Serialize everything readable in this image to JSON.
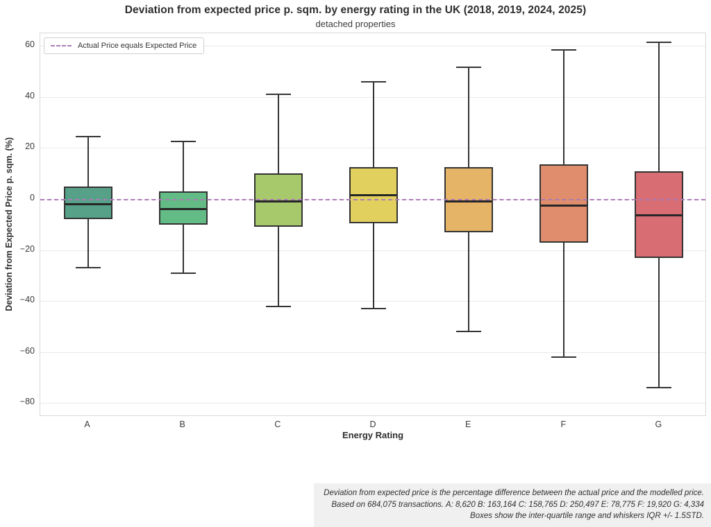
{
  "title": "Deviation from expected price p. sqm. by energy rating in the UK (2018, 2019, 2024, 2025)",
  "subtitle": "detached properties",
  "legend": {
    "label": "Actual Price equals Expected Price",
    "line_color": "#ac7bb5"
  },
  "axes": {
    "y_label": "Deviation from Expected Price p. sqm. (%)",
    "x_label": "Energy Rating",
    "y_tick_labels": [
      "60",
      "40",
      "20",
      "0",
      "−20",
      "−40",
      "−60",
      "−80"
    ],
    "y_tick_values": [
      60,
      40,
      20,
      0,
      -20,
      -40,
      -60,
      -80
    ]
  },
  "chart_data": {
    "type": "boxplot",
    "title": "Deviation from expected price p. sqm. by energy rating in the UK (2018, 2019, 2024, 2025)",
    "subtitle": "detached properties",
    "xlabel": "Energy Rating",
    "ylabel": "Deviation from Expected Price p. sqm. (%)",
    "ylim": [
      -85,
      65
    ],
    "grid": "horizontal",
    "legend_position": "upper left",
    "categories": [
      "A",
      "B",
      "C",
      "D",
      "E",
      "F",
      "G"
    ],
    "series": [
      {
        "category": "A",
        "whisker_low": -27,
        "q1": -8,
        "median": -2,
        "q3": 5,
        "whisker_high": 24.5,
        "color": "#57a189"
      },
      {
        "category": "B",
        "whisker_low": -29,
        "q1": -10,
        "median": -4,
        "q3": 3,
        "whisker_high": 22.5,
        "color": "#63bc85"
      },
      {
        "category": "C",
        "whisker_low": -42,
        "q1": -11,
        "median": -1,
        "q3": 10,
        "whisker_high": 41,
        "color": "#a8c96b"
      },
      {
        "category": "D",
        "whisker_low": -43,
        "q1": -9.5,
        "median": 1.5,
        "q3": 12.5,
        "whisker_high": 46,
        "color": "#e2d05e"
      },
      {
        "category": "E",
        "whisker_low": -52,
        "q1": -13,
        "median": -1,
        "q3": 12.5,
        "whisker_high": 51.5,
        "color": "#e5b467"
      },
      {
        "category": "F",
        "whisker_low": -62,
        "q1": -17,
        "median": -2.5,
        "q3": 13.5,
        "whisker_high": 58.5,
        "color": "#df8d6c"
      },
      {
        "category": "G",
        "whisker_low": -74,
        "q1": -23,
        "median": -6.5,
        "q3": 11,
        "whisker_high": 61.5,
        "color": "#d86d74"
      }
    ],
    "reference_line": {
      "y": 0,
      "style": "dashed",
      "color": "#ac7bb5",
      "label": "Actual Price equals Expected Price"
    }
  },
  "footer": {
    "lines": [
      "Deviation from expected price is the percentage difference between the actual price and the modelled price.",
      "Based on 684,075 transactions. A: 8,620 B: 163,164 C: 158,765 D: 250,497 E: 78,775 F: 19,920 G: 4,334",
      "Boxes show the inter-quartile range and whiskers IQR +/- 1.5STD."
    ]
  }
}
